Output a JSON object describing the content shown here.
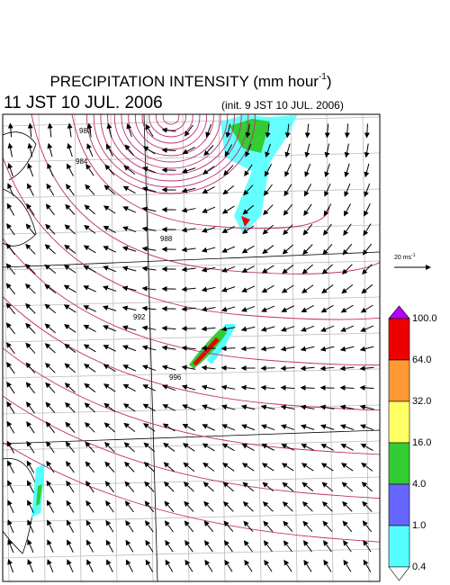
{
  "header": {
    "title": "PRECIPITATION INTENSITY (mm hour",
    "title_sup": "-1",
    "title_end": ")",
    "valid_time": "11 JST 10 JUL. 2006",
    "init_time": "(init. 9 JST 10 JUL. 2006)"
  },
  "vector_legend": {
    "label": "20 ms",
    "sup": "-1"
  },
  "contour_labels": [
    "980",
    "984",
    "988",
    "992",
    "996"
  ],
  "color_bar": {
    "levels": [
      "100.0",
      "64.0",
      "32.0",
      "16.0",
      "4.0",
      "1.0",
      "0.4"
    ]
  }
}
